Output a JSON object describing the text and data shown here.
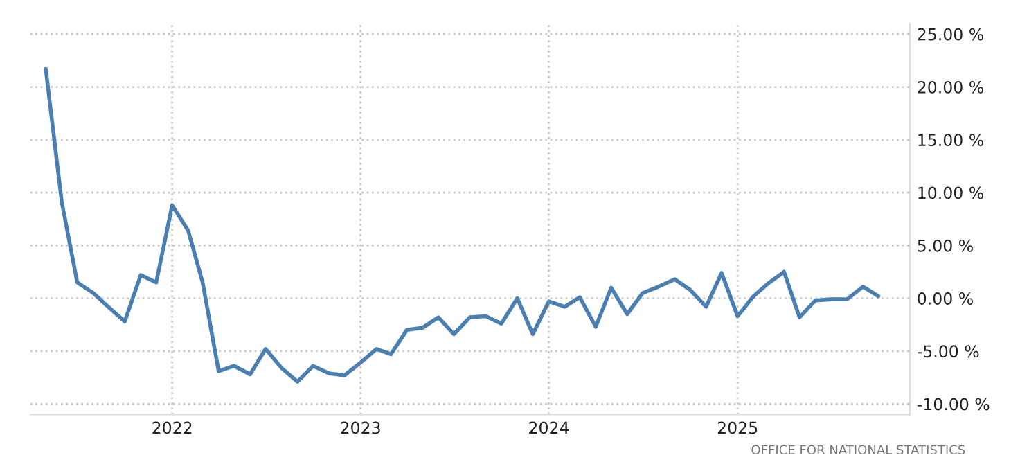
{
  "chart_data": {
    "type": "line",
    "x": [
      "2021-05",
      "2021-06",
      "2021-07",
      "2021-08",
      "2021-09",
      "2021-10",
      "2021-11",
      "2021-12",
      "2022-01",
      "2022-02",
      "2022-03",
      "2022-04",
      "2022-05",
      "2022-06",
      "2022-07",
      "2022-08",
      "2022-09",
      "2022-10",
      "2022-11",
      "2022-12",
      "2023-01",
      "2023-02",
      "2023-03",
      "2023-04",
      "2023-05",
      "2023-06",
      "2023-07",
      "2023-08",
      "2023-09",
      "2023-10",
      "2023-11",
      "2023-12",
      "2024-01",
      "2024-02",
      "2024-03",
      "2024-04",
      "2024-05",
      "2024-06",
      "2024-07",
      "2024-08",
      "2024-09",
      "2024-10",
      "2024-11",
      "2024-12",
      "2025-01",
      "2025-02",
      "2025-03",
      "2025-04",
      "2025-05",
      "2025-06",
      "2025-07",
      "2025-08",
      "2025-09",
      "2025-10"
    ],
    "series": [
      {
        "color": "#4a7fb0",
        "values": [
          21.7,
          9.1,
          1.5,
          0.5,
          -0.9,
          -2.2,
          2.2,
          1.5,
          8.8,
          6.4,
          1.5,
          -6.9,
          -6.4,
          -7.2,
          -4.8,
          -6.6,
          -7.9,
          -6.4,
          -7.1,
          -7.3,
          -6.1,
          -4.8,
          -5.3,
          -3.0,
          -2.8,
          -1.8,
          -3.4,
          -1.8,
          -1.7,
          -2.4,
          0.0,
          -3.4,
          -0.3,
          -0.8,
          0.1,
          -2.7,
          1.0,
          -1.5,
          0.5,
          1.1,
          1.8,
          0.8,
          -0.8,
          2.4,
          -1.7,
          0.2,
          1.4,
          2.5,
          -1.8,
          -0.2,
          -0.1,
          -0.1,
          1.1,
          0.2
        ]
      }
    ],
    "xlim": [
      "2021-04-01",
      "2025-12-01"
    ],
    "xticks": [
      {
        "value": "2022-01",
        "label": "2022"
      },
      {
        "value": "2023-01",
        "label": "2023"
      },
      {
        "value": "2024-01",
        "label": "2024"
      },
      {
        "value": "2025-01",
        "label": "2025"
      }
    ],
    "ylim": [
      -11,
      26
    ],
    "yticks": [
      {
        "value": -10,
        "label": "-10.00 %"
      },
      {
        "value": -5,
        "label": "-5.00 %"
      },
      {
        "value": 0,
        "label": "0.00 %"
      },
      {
        "value": 5,
        "label": "5.00 %"
      },
      {
        "value": 10,
        "label": "10.00 %"
      },
      {
        "value": 15,
        "label": "15.00 %"
      },
      {
        "value": 20,
        "label": "20.00 %"
      },
      {
        "value": 25,
        "label": "25.00 %"
      }
    ],
    "grid": true,
    "legend": false,
    "annotations": [
      "OFFICE FOR NATIONAL STATISTICS"
    ]
  }
}
